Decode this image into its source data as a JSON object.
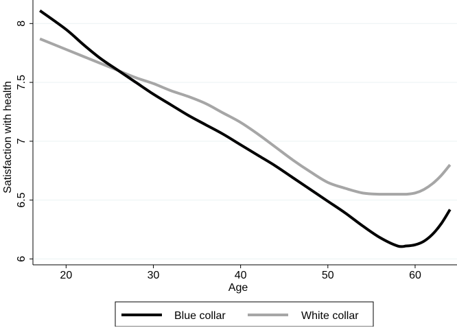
{
  "chart_data": {
    "type": "line",
    "title": "",
    "xlabel": "Age",
    "ylabel": "Satisfaction with health",
    "xlim": [
      16.2,
      64.8
    ],
    "ylim": [
      5.95,
      8.2
    ],
    "x_ticks": [
      20,
      30,
      40,
      50,
      60
    ],
    "x_tick_labels": [
      "20",
      "30",
      "40",
      "50",
      "60"
    ],
    "y_ticks": [
      6,
      6.5,
      7,
      7.5,
      8
    ],
    "y_tick_labels": [
      "6",
      "6.5",
      "7",
      "7.5",
      "8"
    ],
    "grid": "horizontal",
    "legend_position": "bottom",
    "x": [
      17,
      20,
      22,
      24,
      26,
      28,
      30,
      32,
      34,
      36,
      38,
      40,
      42,
      44,
      46,
      48,
      50,
      52,
      54,
      56,
      58,
      59,
      60,
      61,
      62,
      63,
      64
    ],
    "series": [
      {
        "name": "Blue collar",
        "color": "#000000",
        "values": [
          8.11,
          7.95,
          7.82,
          7.7,
          7.6,
          7.5,
          7.4,
          7.31,
          7.22,
          7.14,
          7.06,
          6.97,
          6.88,
          6.79,
          6.69,
          6.59,
          6.49,
          6.39,
          6.28,
          6.18,
          6.11,
          6.11,
          6.12,
          6.15,
          6.21,
          6.3,
          6.42
        ]
      },
      {
        "name": "White collar",
        "color": "#a6a6a6",
        "values": [
          7.87,
          7.78,
          7.72,
          7.66,
          7.6,
          7.54,
          7.49,
          7.43,
          7.38,
          7.32,
          7.24,
          7.16,
          7.06,
          6.95,
          6.84,
          6.74,
          6.65,
          6.6,
          6.56,
          6.55,
          6.55,
          6.55,
          6.56,
          6.59,
          6.64,
          6.71,
          6.8
        ]
      }
    ]
  }
}
